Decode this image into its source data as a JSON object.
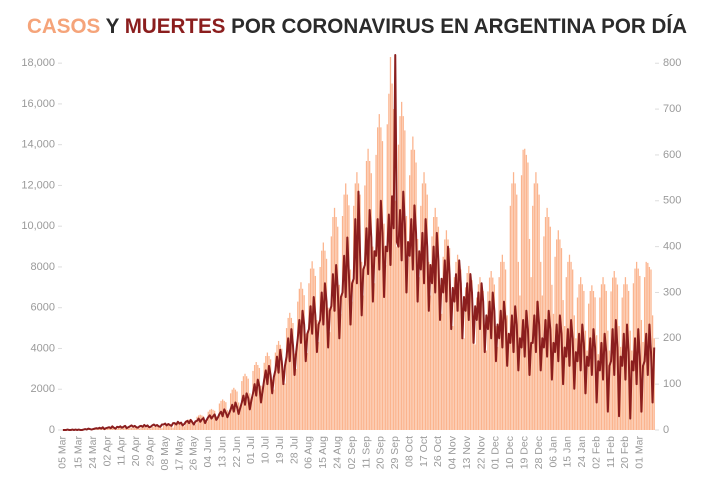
{
  "chart_data": {
    "type": "bar",
    "title": [
      {
        "text": "CASOS",
        "color": "#f5a47a"
      },
      {
        "text": "Y",
        "color": "#2b2b2b"
      },
      {
        "text": "MUERTES",
        "color": "#8b1e1e"
      },
      {
        "text": "POR CORONAVIRUS EN ARGENTINA POR DÍA",
        "color": "#2b2b2b"
      }
    ],
    "categories": [
      "05 Mar",
      null,
      null,
      null,
      null,
      null,
      null,
      null,
      null,
      null,
      "15 Mar",
      null,
      null,
      null,
      null,
      null,
      null,
      null,
      null,
      "24 Mar",
      null,
      null,
      null,
      null,
      null,
      null,
      null,
      null,
      "02 Apr",
      null,
      null,
      null,
      null,
      null,
      null,
      null,
      null,
      "11 Apr",
      null,
      null,
      null,
      null,
      null,
      null,
      null,
      null,
      "20 Apr",
      null,
      null,
      null,
      null,
      null,
      null,
      null,
      null,
      "29 Apr",
      null,
      null,
      null,
      null,
      null,
      null,
      null,
      null,
      "08 May",
      null,
      null,
      null,
      null,
      null,
      null,
      null,
      null,
      "17 May",
      null,
      null,
      null,
      null,
      null,
      null,
      null,
      null,
      "26 May",
      null,
      null,
      null,
      null,
      null,
      null,
      null,
      null,
      "04 Jun",
      null,
      null,
      null,
      null,
      null,
      null,
      null,
      null,
      "13 Jun",
      null,
      null,
      null,
      null,
      null,
      null,
      null,
      null,
      "22 Jun",
      null,
      null,
      null,
      null,
      null,
      null,
      null,
      null,
      "01 Jul",
      null,
      null,
      null,
      null,
      null,
      null,
      null,
      null,
      "10 Jul",
      null,
      null,
      null,
      null,
      null,
      null,
      null,
      null,
      "19 Jul",
      null,
      null,
      null,
      null,
      null,
      null,
      null,
      null,
      "28 Jul",
      null,
      null,
      null,
      null,
      null,
      null,
      null,
      null,
      "06 Aug",
      null,
      null,
      null,
      null,
      null,
      null,
      null,
      null,
      "15 Aug",
      null,
      null,
      null,
      null,
      null,
      null,
      null,
      null,
      "24 Aug",
      null,
      null,
      null,
      null,
      null,
      null,
      null,
      null,
      "02 Sep",
      null,
      null,
      null,
      null,
      null,
      null,
      null,
      null,
      "11 Sep",
      null,
      null,
      null,
      null,
      null,
      null,
      null,
      null,
      "20 Sep",
      null,
      null,
      null,
      null,
      null,
      null,
      null,
      null,
      "29 Sep",
      null,
      null,
      null,
      null,
      null,
      null,
      null,
      null,
      "08 Oct",
      null,
      null,
      null,
      null,
      null,
      null,
      null,
      null,
      "17 Oct",
      null,
      null,
      null,
      null,
      null,
      null,
      null,
      null,
      "26 Oct",
      null,
      null,
      null,
      null,
      null,
      null,
      null,
      null,
      "04 Nov",
      null,
      null,
      null,
      null,
      null,
      null,
      null,
      null,
      "13 Nov",
      null,
      null,
      null,
      null,
      null,
      null,
      null,
      null,
      "22 Nov",
      null,
      null,
      null,
      null,
      null,
      null,
      null,
      null,
      "01 Dec",
      null,
      null,
      null,
      null,
      null,
      null,
      null,
      null,
      "10 Dec",
      null,
      null,
      null,
      null,
      null,
      null,
      null,
      null,
      "19 Dec",
      null,
      null,
      null,
      null,
      null,
      null,
      null,
      null,
      "28 Dec",
      null,
      null,
      null,
      null,
      null,
      null,
      null,
      null,
      "06 Jan",
      null,
      null,
      null,
      null,
      null,
      null,
      null,
      null,
      "15 Jan",
      null,
      null,
      null,
      null,
      null,
      null,
      null,
      null,
      "24 Jan",
      null,
      null,
      null,
      null,
      null,
      null,
      null,
      null,
      "02 Feb",
      null,
      null,
      null,
      null,
      null,
      null,
      null,
      null,
      "11 Feb",
      null,
      null,
      null,
      null,
      null,
      null,
      null,
      null,
      "20 Feb",
      null,
      null,
      null,
      null,
      null,
      null,
      null,
      null,
      "01 Mar",
      null,
      null,
      null,
      null,
      null,
      null,
      null,
      null,
      null
    ],
    "series": [
      {
        "type": "bar",
        "axis": "y",
        "color": "#fbb48e",
        "values": [
          1,
          2,
          3,
          5,
          8,
          4,
          10,
          15,
          20,
          25,
          30,
          28,
          20,
          15,
          50,
          60,
          70,
          65,
          60,
          45,
          40,
          90,
          100,
          105,
          95,
          90,
          70,
          55,
          100,
          110,
          115,
          110,
          105,
          75,
          60,
          110,
          120,
          125,
          115,
          110,
          80,
          65,
          110,
          120,
          130,
          120,
          115,
          85,
          70,
          130,
          145,
          150,
          140,
          135,
          95,
          80,
          150,
          165,
          175,
          165,
          160,
          115,
          90,
          200,
          220,
          230,
          220,
          210,
          150,
          120,
          300,
          330,
          345,
          330,
          315,
          225,
          180,
          450,
          495,
          520,
          495,
          470,
          340,
          270,
          650,
          715,
          750,
          715,
          680,
          490,
          390,
          900,
          990,
          1035,
          990,
          945,
          675,
          540,
          1300,
          1430,
          1500,
          1430,
          1365,
          975,
          780,
          1800,
          1980,
          2070,
          1980,
          1890,
          1350,
          1080,
          2400,
          2640,
          2760,
          2640,
          2520,
          1800,
          1440,
          2900,
          3190,
          3335,
          3190,
          3045,
          2175,
          1740,
          3300,
          3630,
          3800,
          3630,
          3465,
          2475,
          1980,
          3800,
          4180,
          4370,
          4180,
          3990,
          2850,
          2280,
          5000,
          5500,
          5750,
          5500,
          5250,
          3750,
          3000,
          6300,
          6930,
          7250,
          6930,
          6615,
          4725,
          3780,
          7200,
          7920,
          8280,
          7920,
          7560,
          5400,
          4320,
          8000,
          8800,
          9200,
          8800,
          8400,
          6000,
          4800,
          9500,
          10450,
          10900,
          10450,
          9975,
          7125,
          5700,
          10500,
          11550,
          12100,
          11550,
          11025,
          7875,
          6300,
          11000,
          12100,
          12650,
          12100,
          11550,
          8250,
          6600,
          12000,
          13200,
          13800,
          13200,
          12600,
          9000,
          7200,
          13500,
          14850,
          15500,
          14850,
          14175,
          10125,
          8100,
          15000,
          16500,
          18300,
          17000,
          15750,
          11250,
          9000,
          14000,
          15400,
          16100,
          15400,
          14700,
          10500,
          8400,
          12500,
          13750,
          14400,
          13750,
          13125,
          9375,
          7500,
          11000,
          12100,
          12650,
          12100,
          11550,
          8250,
          6600,
          9500,
          10450,
          10900,
          10450,
          9975,
          7125,
          5700,
          8500,
          9350,
          9800,
          9350,
          8925,
          6375,
          5100,
          7500,
          8250,
          8600,
          8250,
          7875,
          5625,
          4500,
          7000,
          7700,
          8050,
          7700,
          7350,
          5250,
          4200,
          6500,
          7150,
          7500,
          7150,
          6825,
          4875,
          3900,
          6800,
          7480,
          7800,
          7480,
          7140,
          5100,
          4080,
          7500,
          8250,
          8600,
          8250,
          7875,
          5625,
          4500,
          11000,
          12100,
          12650,
          12100,
          11550,
          8250,
          6600,
          12500,
          13750,
          13800,
          13500,
          13125,
          9375,
          7500,
          11000,
          12100,
          12650,
          12100,
          11550,
          8250,
          6600,
          9500,
          10450,
          10900,
          10450,
          9975,
          7125,
          5700,
          8500,
          9350,
          9800,
          9350,
          8925,
          6375,
          5100,
          7500,
          8250,
          8600,
          8250,
          7875,
          5625,
          4500,
          6500,
          7150,
          7500,
          7150,
          6825,
          4875,
          3900,
          6200,
          6820,
          7100,
          6820,
          6510,
          4650,
          3720,
          6500,
          7150,
          7500,
          7150,
          6825,
          4875,
          3900,
          6800,
          7480,
          7800,
          7480,
          7140,
          5100,
          4080,
          6500,
          7150,
          7500,
          7150,
          6825,
          4875,
          3900,
          7200,
          7920,
          8250,
          7920,
          7560,
          5400,
          4320,
          7500,
          8250,
          8200,
          8000,
          7875,
          5625,
          4500
        ]
      },
      {
        "type": "line",
        "axis": "y2",
        "color": "#8b1e1e",
        "values": [
          0,
          0,
          0,
          1,
          0,
          0,
          1,
          0,
          1,
          0,
          1,
          0,
          0,
          1,
          2,
          1,
          3,
          2,
          1,
          2,
          3,
          4,
          3,
          5,
          3,
          6,
          2,
          4,
          5,
          6,
          4,
          8,
          5,
          3,
          7,
          6,
          8,
          5,
          7,
          9,
          4,
          6,
          8,
          10,
          7,
          9,
          6,
          5,
          8,
          9,
          7,
          11,
          8,
          10,
          6,
          7,
          10,
          12,
          9,
          11,
          8,
          7,
          12,
          12,
          14,
          10,
          13,
          11,
          9,
          15,
          15,
          12,
          18,
          14,
          16,
          10,
          13,
          18,
          20,
          15,
          22,
          17,
          12,
          19,
          20,
          25,
          18,
          23,
          26,
          15,
          22,
          28,
          32,
          25,
          30,
          34,
          22,
          27,
          35,
          40,
          30,
          45,
          38,
          28,
          36,
          45,
          55,
          40,
          60,
          50,
          35,
          48,
          60,
          75,
          55,
          80,
          70,
          45,
          65,
          80,
          100,
          75,
          110,
          95,
          60,
          85,
          110,
          130,
          100,
          140,
          120,
          80,
          115,
          130,
          160,
          125,
          175,
          150,
          100,
          140,
          160,
          200,
          150,
          220,
          185,
          120,
          170,
          200,
          240,
          190,
          260,
          230,
          150,
          210,
          220,
          270,
          210,
          290,
          250,
          170,
          230,
          240,
          300,
          230,
          320,
          280,
          180,
          260,
          270,
          340,
          260,
          360,
          310,
          200,
          290,
          300,
          380,
          290,
          420,
          340,
          230,
          320,
          330,
          460,
          320,
          520,
          380,
          250,
          350,
          360,
          440,
          340,
          480,
          420,
          280,
          390,
          380,
          460,
          350,
          500,
          430,
          290,
          400,
          390,
          470,
          360,
          510,
          440,
          818,
          410,
          400,
          480,
          370,
          520,
          450,
          300,
          410,
          380,
          460,
          350,
          490,
          430,
          280,
          390,
          350,
          430,
          320,
          460,
          400,
          260,
          360,
          320,
          400,
          300,
          430,
          370,
          240,
          330,
          300,
          370,
          280,
          400,
          340,
          220,
          310,
          280,
          340,
          260,
          370,
          320,
          200,
          290,
          260,
          320,
          240,
          340,
          300,
          190,
          270,
          240,
          300,
          220,
          320,
          280,
          170,
          250,
          220,
          280,
          200,
          300,
          260,
          150,
          230,
          200,
          260,
          180,
          280,
          240,
          140,
          210,
          190,
          250,
          170,
          270,
          230,
          130,
          200,
          180,
          240,
          160,
          260,
          220,
          120,
          190,
          190,
          250,
          170,
          280,
          230,
          130,
          200,
          180,
          240,
          160,
          260,
          220,
          110,
          190,
          170,
          230,
          150,
          250,
          210,
          100,
          180,
          160,
          220,
          140,
          240,
          200,
          90,
          170,
          150,
          210,
          130,
          230,
          190,
          80,
          160,
          140,
          200,
          120,
          220,
          180,
          60,
          150,
          130,
          190,
          110,
          210,
          170,
          40,
          140,
          150,
          220,
          120,
          240,
          180,
          30,
          160,
          140,
          210,
          110,
          230,
          170,
          25,
          150,
          130,
          200,
          100,
          220,
          160,
          40,
          140,
          150,
          210,
          120,
          230,
          170,
          60,
          180
        ]
      }
    ],
    "ylim": [
      0,
      18400
    ],
    "yticks": [
      0,
      2000,
      4000,
      6000,
      8000,
      {
        "value": 10000,
        "label": "10,000"
      },
      {
        "value": 12000,
        "label": "12,000"
      },
      {
        "value": 14000,
        "label": "14,000"
      },
      {
        "value": 16000,
        "label": "16,000"
      },
      {
        "value": 18000,
        "label": "18,000"
      }
    ],
    "y2lim": [
      0,
      818
    ],
    "y2ticks": [
      0,
      100,
      200,
      300,
      400,
      500,
      600,
      700,
      800
    ]
  }
}
